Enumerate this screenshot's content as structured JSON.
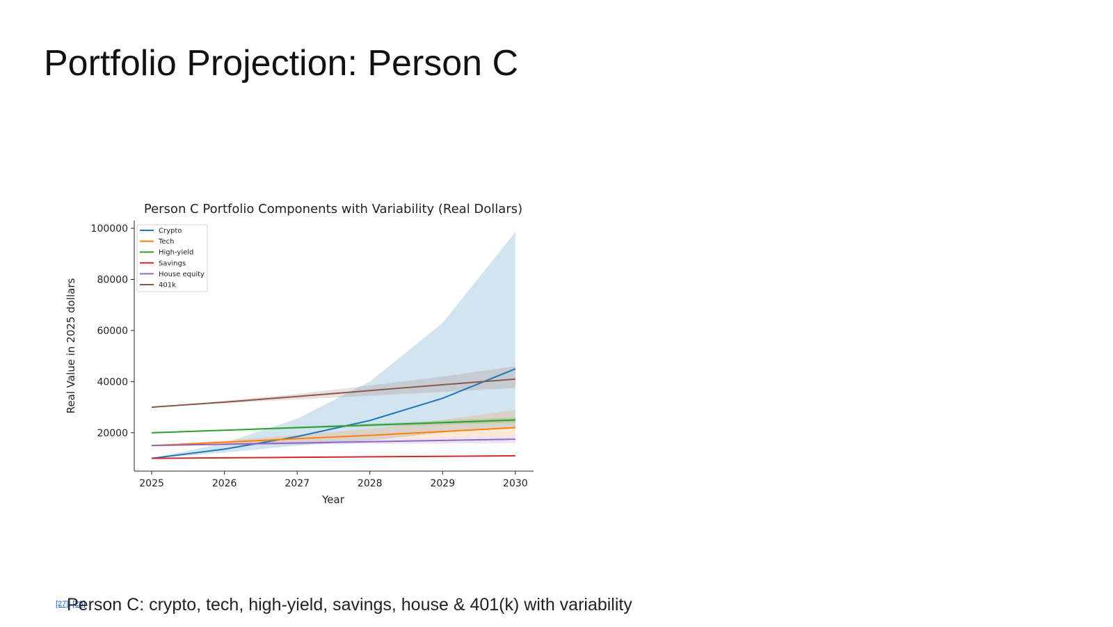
{
  "slide": {
    "title": "Portfolio Projection: Person C",
    "caption": "Person C: crypto, tech, high-yield, savings, house & 401(k) with variability",
    "refs": [
      "[27]",
      "[28]"
    ]
  },
  "chart_data": {
    "type": "line",
    "title": "Person C Portfolio Components with Variability (Real Dollars)",
    "xlabel": "Year",
    "ylabel": "Real Value in 2025 dollars",
    "x": [
      2025,
      2026,
      2027,
      2028,
      2029,
      2030
    ],
    "xticks": [
      "2025",
      "2026",
      "2027",
      "2028",
      "2029",
      "2030"
    ],
    "yticks": [
      "20000",
      "40000",
      "60000",
      "80000",
      "100000"
    ],
    "ylim": [
      5000,
      103000
    ],
    "xlim": [
      2024.76,
      2030.25
    ],
    "legend_position": "upper-left",
    "grid": false,
    "series": [
      {
        "name": "Crypto",
        "color": "#1f77b4",
        "values": [
          10000,
          13600,
          18500,
          24800,
          33500,
          45000
        ],
        "lower": [
          10000,
          12200,
          15000,
          17000,
          20000,
          22000
        ],
        "upper": [
          10000,
          16000,
          25500,
          40000,
          63000,
          98500
        ]
      },
      {
        "name": "Tech",
        "color": "#ff7f0e",
        "values": [
          15000,
          16300,
          17700,
          19000,
          20500,
          22000
        ],
        "lower": [
          15000,
          15700,
          16600,
          17400,
          18200,
          19000
        ],
        "upper": [
          15000,
          17000,
          19200,
          21500,
          25000,
          29000
        ]
      },
      {
        "name": "High-yield",
        "color": "#2ca02c",
        "values": [
          20000,
          21000,
          22000,
          23000,
          24000,
          25000
        ],
        "lower": [
          20000,
          20800,
          21600,
          22400,
          23200,
          24000
        ],
        "upper": [
          20000,
          21200,
          22400,
          23600,
          24800,
          26000
        ]
      },
      {
        "name": "Savings",
        "color": "#d62728",
        "values": [
          10000,
          10200,
          10400,
          10600,
          10800,
          11000
        ],
        "lower": [
          10000,
          10150,
          10300,
          10450,
          10600,
          10750
        ],
        "upper": [
          10000,
          10250,
          10500,
          10750,
          11000,
          11250
        ]
      },
      {
        "name": "House equity",
        "color": "#9467bd",
        "values": [
          15000,
          15500,
          16000,
          16500,
          17000,
          17500
        ],
        "lower": [
          15000,
          15200,
          15400,
          15600,
          15800,
          16000
        ],
        "upper": [
          15000,
          15800,
          16600,
          17400,
          18200,
          19000
        ]
      },
      {
        "name": "401k",
        "color": "#8c564b",
        "values": [
          30000,
          32000,
          34200,
          36500,
          38800,
          41000
        ],
        "lower": [
          30000,
          31500,
          33000,
          34500,
          36000,
          37500
        ],
        "upper": [
          30000,
          32500,
          35200,
          38500,
          42000,
          46000
        ]
      }
    ]
  }
}
